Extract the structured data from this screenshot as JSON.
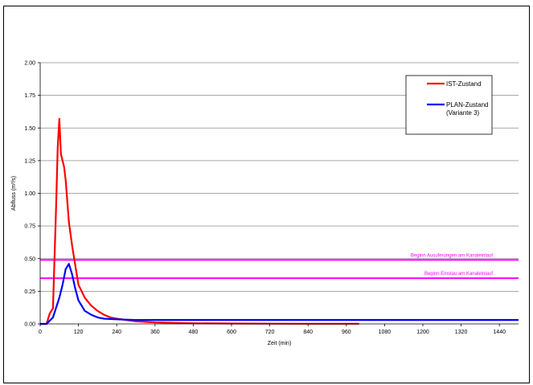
{
  "chart_data": {
    "type": "line",
    "xlabel": "Zeit (min)",
    "ylabel": "Abfluss (m³/s)",
    "xlim": [
      0,
      1500
    ],
    "ylim": [
      0,
      2.0
    ],
    "xticks": [
      0,
      120,
      240,
      360,
      480,
      600,
      720,
      840,
      960,
      1080,
      1200,
      1320,
      1440
    ],
    "yticks": [
      0.0,
      0.25,
      0.5,
      0.75,
      1.0,
      1.25,
      1.5,
      1.75,
      2.0
    ],
    "ytick_labels": [
      "0.00",
      "0.25",
      "0.50",
      "0.75",
      "1.00",
      "1.25",
      "1.50",
      "1.75",
      "2.00"
    ],
    "grid": "horizontal",
    "legend_position": "top-right",
    "series": [
      {
        "name": "IST-Zustand",
        "color": "#ff0000",
        "x": [
          0,
          20,
          30,
          40,
          50,
          55,
          60,
          65,
          70,
          75,
          80,
          90,
          100,
          110,
          120,
          140,
          160,
          180,
          200,
          220,
          240,
          270,
          300,
          360,
          420,
          480,
          600,
          720,
          840,
          960,
          1000
        ],
        "y": [
          0,
          0,
          0.08,
          0.12,
          0.9,
          1.35,
          1.57,
          1.3,
          1.25,
          1.2,
          1.1,
          0.78,
          0.6,
          0.45,
          0.3,
          0.2,
          0.14,
          0.1,
          0.07,
          0.05,
          0.04,
          0.03,
          0.02,
          0.012,
          0.008,
          0.005,
          0.003,
          0.002,
          0.001,
          0.001,
          0.001
        ]
      },
      {
        "name": "PLAN-Zustand\n(Variante 3)",
        "name_lines": [
          "PLAN-Zustand",
          "(Variante 3)"
        ],
        "color": "#0000ff",
        "x": [
          0,
          20,
          40,
          60,
          70,
          80,
          90,
          100,
          110,
          120,
          140,
          160,
          180,
          200,
          240,
          300,
          360,
          480,
          600,
          720,
          840,
          960,
          1080,
          1200,
          1320,
          1440,
          1500
        ],
        "y": [
          0,
          0,
          0.05,
          0.2,
          0.3,
          0.42,
          0.46,
          0.38,
          0.27,
          0.18,
          0.1,
          0.07,
          0.05,
          0.04,
          0.035,
          0.03,
          0.03,
          0.03,
          0.03,
          0.03,
          0.03,
          0.03,
          0.03,
          0.03,
          0.03,
          0.03,
          0.03
        ]
      }
    ],
    "reference_lines": [
      {
        "y": 0.49,
        "label": "Beginn Ausuferungen am Kanaleinlauf",
        "color": "#ff00ff"
      },
      {
        "y": 0.35,
        "label": "Beginn Einstau am Kanaleinlauf",
        "color": "#ff00ff"
      }
    ]
  }
}
